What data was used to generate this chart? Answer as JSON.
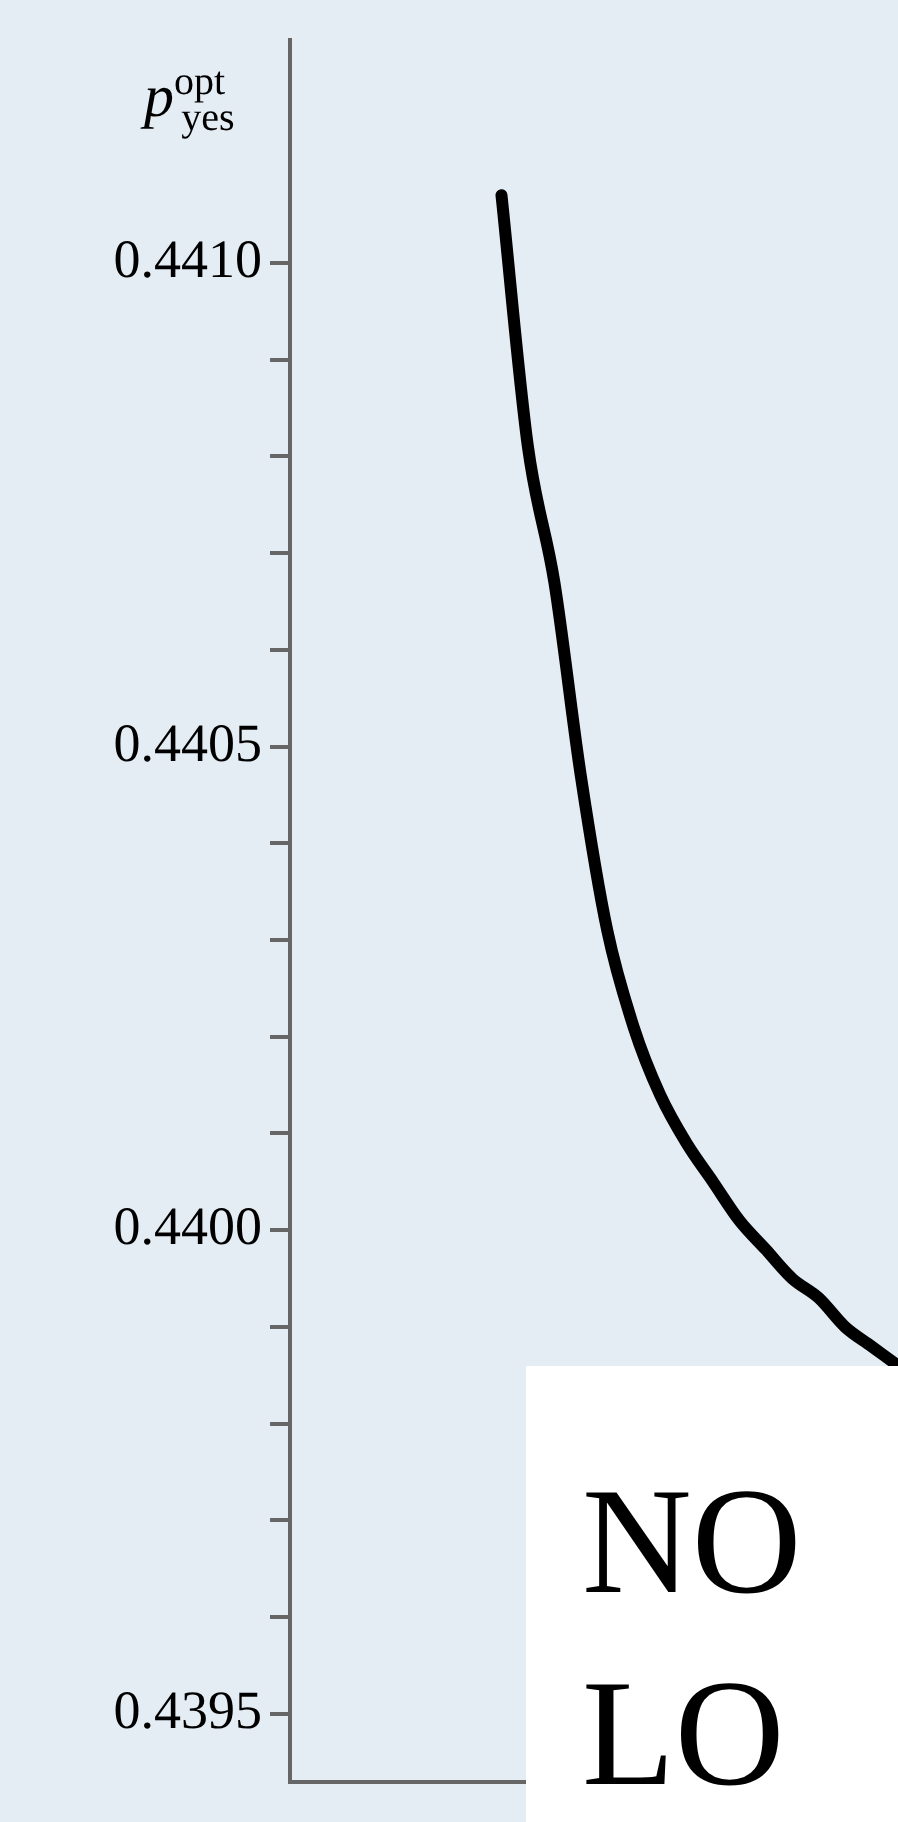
{
  "chart_data": {
    "type": "line",
    "ylabel": "p$^{opt}$$_{yes}$",
    "categories": [
      null,
      null,
      null,
      null,
      null,
      null,
      null,
      null,
      null,
      null,
      null,
      null,
      null,
      null,
      null,
      null,
      null,
      null,
      null,
      null,
      null,
      null,
      null,
      null
    ],
    "series": [
      {
        "color": "#000000",
        "values": [
          null,
          null,
          null,
          null,
          null,
          null,
          null,
          null,
          0.44107,
          0.44081,
          0.44067,
          0.44047,
          0.44031,
          0.44021,
          0.44014,
          0.44009,
          0.44005,
          0.44001,
          0.43998,
          0.43995,
          0.43993,
          0.4399,
          0.43988,
          0.43986
        ]
      }
    ],
    "ylim": [
      0.43943,
      0.44123
    ],
    "yticks": [
      {
        "value": 0.4395,
        "label": "0.4395"
      },
      {
        "value": 0.4396,
        "label": null
      },
      {
        "value": 0.4397,
        "label": null
      },
      {
        "value": 0.4398,
        "label": null
      },
      {
        "value": 0.4399,
        "label": null
      },
      {
        "value": 0.44,
        "label": "0.4400"
      },
      {
        "value": 0.4401,
        "label": null
      },
      {
        "value": 0.4402,
        "label": null
      },
      {
        "value": 0.4403,
        "label": null
      },
      {
        "value": 0.4404,
        "label": null
      },
      {
        "value": 0.4405,
        "label": "0.4405"
      },
      {
        "value": 0.4406,
        "label": null
      },
      {
        "value": 0.4407,
        "label": null
      },
      {
        "value": 0.4408,
        "label": null
      },
      {
        "value": 0.4409,
        "label": null
      },
      {
        "value": 0.441,
        "label": "0.4410"
      }
    ],
    "tick_labels": "y",
    "grid": false,
    "legend": false,
    "marker": "none",
    "line_style": "solid",
    "annotations": [
      "NO",
      "LO"
    ]
  }
}
